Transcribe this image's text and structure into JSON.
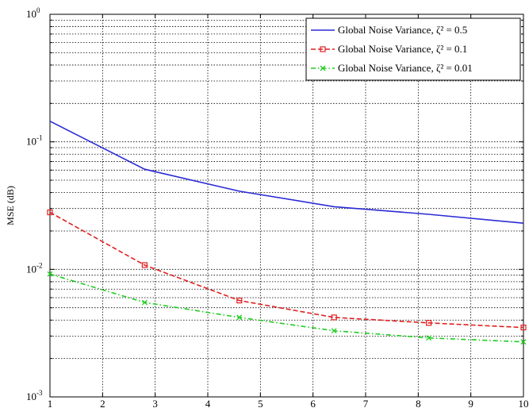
{
  "chart_data": {
    "type": "line",
    "title": "",
    "xlabel": "",
    "ylabel": "MSE (dB)",
    "xlim": [
      1,
      10
    ],
    "ylim": [
      0.001,
      1
    ],
    "yscale": "log",
    "grid": true,
    "legend_position": "top-right",
    "x_ticks": [
      "1",
      "2",
      "3",
      "4",
      "5",
      "6",
      "7",
      "8",
      "9",
      "10"
    ],
    "y_ticks": [
      {
        "value": 0.001,
        "base": "10",
        "exp": "-3"
      },
      {
        "value": 0.01,
        "base": "10",
        "exp": "-2"
      },
      {
        "value": 0.1,
        "base": "10",
        "exp": "-1"
      },
      {
        "value": 1,
        "base": "10",
        "exp": "0"
      }
    ],
    "series": [
      {
        "name": "Global Noise Variance, ζ² = 0.5",
        "color": "#2b2bd6",
        "line_style": "solid",
        "marker": "none",
        "x": [
          1,
          2.8,
          4.6,
          6.4,
          8.2,
          10
        ],
        "y": [
          0.145,
          0.061,
          0.041,
          0.031,
          0.027,
          0.023
        ]
      },
      {
        "name": "Global Noise Variance, ζ² = 0.1",
        "color": "#e02020",
        "line_style": "dashed",
        "marker": "square",
        "x": [
          1,
          2.8,
          4.6,
          6.4,
          8.2,
          10
        ],
        "y": [
          0.028,
          0.0108,
          0.0057,
          0.0042,
          0.0038,
          0.0035
        ]
      },
      {
        "name": "Global Noise Variance, ζ² = 0.01",
        "color": "#22cc22",
        "line_style": "dashdot",
        "marker": "x",
        "x": [
          1,
          2.8,
          4.6,
          6.4,
          8.2,
          10
        ],
        "y": [
          0.0092,
          0.0055,
          0.0042,
          0.0033,
          0.0029,
          0.0027
        ]
      }
    ]
  }
}
